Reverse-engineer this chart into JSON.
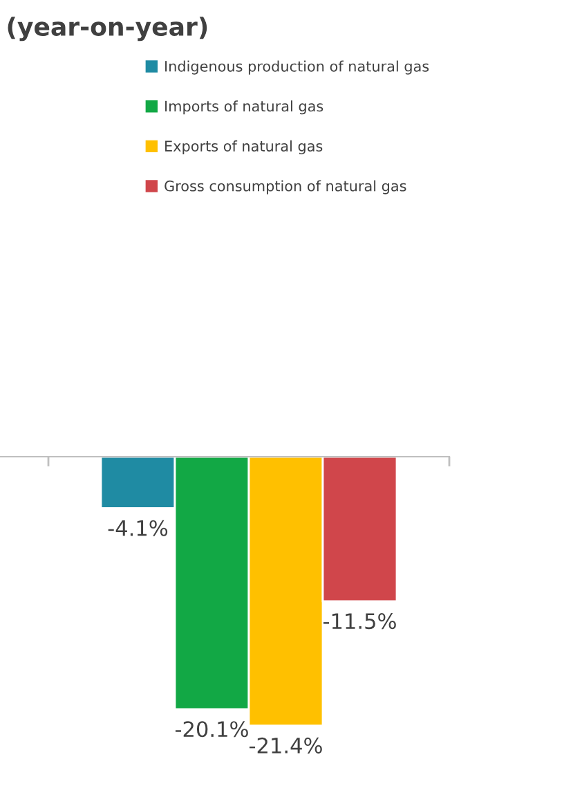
{
  "chart_data": {
    "type": "bar",
    "title": "(year-on-year)",
    "categories": [
      null
    ],
    "legend": "top right",
    "series": [
      {
        "name": "Indigenous production of natural gas",
        "color": "#1f8ba3",
        "values": [
          -4.1
        ],
        "value_labels": [
          "-4.1%"
        ]
      },
      {
        "name": "Imports of natural gas",
        "color": "#12a845",
        "values": [
          -20.1
        ],
        "value_labels": [
          "-20.1%"
        ]
      },
      {
        "name": "Exports of natural gas",
        "color": "#ffc000",
        "values": [
          -21.4
        ],
        "value_labels": [
          "-21.4%"
        ]
      },
      {
        "name": "Gross consumption of natural gas",
        "color": "#d0464b",
        "values": [
          -11.5
        ],
        "value_labels": [
          "-11.5%"
        ]
      }
    ]
  }
}
